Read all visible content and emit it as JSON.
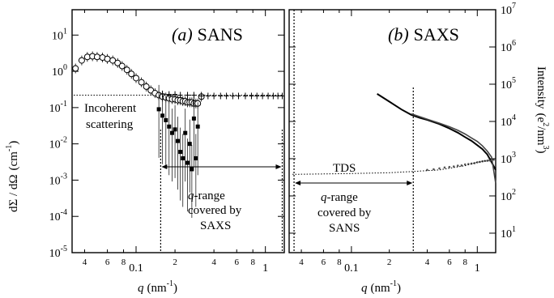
{
  "chart_data": [
    {
      "type": "scatter",
      "panel_label": "(a) SANS",
      "panel_letter": "a",
      "panel_name": "SANS",
      "xlabel": "q (nm⁻¹)",
      "xlabel_main": "q",
      "xlabel_unit": "(nm",
      "xlabel_exp": "-1",
      "xlabel_close": ")",
      "ylabel": "dΣ/dΩ (cm⁻¹)",
      "ylabel_main": "dΣ / dΩ",
      "ylabel_unit": "(cm",
      "ylabel_exp": "-1",
      "ylabel_close": ")",
      "x_scale": "log",
      "y_scale": "log",
      "xlim": [
        0.032,
        1.4
      ],
      "ylim": [
        1e-05,
        50
      ],
      "x_ticks_major": [
        {
          "v": 0.1,
          "label": "0.1"
        },
        {
          "v": 1,
          "label": "1"
        }
      ],
      "x_ticks_minor": [
        {
          "v": 0.04,
          "label": "4"
        },
        {
          "v": 0.06,
          "label": "6"
        },
        {
          "v": 0.08,
          "label": "8"
        },
        {
          "v": 0.2,
          "label": "2"
        },
        {
          "v": 0.4,
          "label": "4"
        },
        {
          "v": 0.6,
          "label": "6"
        },
        {
          "v": 0.8,
          "label": "8"
        }
      ],
      "y_ticks": [
        {
          "v": 10,
          "b": "10",
          "e": "1"
        },
        {
          "v": 1,
          "b": "10",
          "e": "0"
        },
        {
          "v": 0.1,
          "b": "10",
          "e": "-1"
        },
        {
          "v": 0.01,
          "b": "10",
          "e": "-2"
        },
        {
          "v": 0.001,
          "b": "10",
          "e": "-3"
        },
        {
          "v": 0.0001,
          "b": "10",
          "e": "-4"
        },
        {
          "v": 1e-05,
          "b": "10",
          "e": "-5"
        }
      ],
      "incoherent_level": 0.22,
      "saxs_range": [
        0.155,
        1.35
      ],
      "annotations": {
        "incoherent_1": "Incoherent",
        "incoherent_2": "scattering",
        "qrange_1_var": "q",
        "qrange_1_rest": "-range",
        "qrange_2": "covered by",
        "qrange_3": "SAXS"
      },
      "series": [
        {
          "marker": "open-circle",
          "x": [
            0.034,
            0.038,
            0.042,
            0.046,
            0.05,
            0.055,
            0.06,
            0.066,
            0.072,
            0.078,
            0.085,
            0.092,
            0.1,
            0.11,
            0.12,
            0.13,
            0.14,
            0.15,
            0.16,
            0.17,
            0.18,
            0.19,
            0.2,
            0.21,
            0.22,
            0.23,
            0.24,
            0.25,
            0.26,
            0.27,
            0.28,
            0.29,
            0.3,
            0.32
          ],
          "y": [
            1.2,
            2.0,
            2.5,
            2.6,
            2.5,
            2.4,
            2.2,
            2.0,
            1.7,
            1.4,
            1.1,
            0.85,
            0.65,
            0.5,
            0.38,
            0.3,
            0.25,
            0.22,
            0.2,
            0.19,
            0.18,
            0.17,
            0.17,
            0.16,
            0.16,
            0.15,
            0.15,
            0.14,
            0.14,
            0.14,
            0.13,
            0.13,
            0.13,
            0.2
          ]
        },
        {
          "marker": "plus",
          "x": [
            0.16,
            0.18,
            0.2,
            0.22,
            0.25,
            0.28,
            0.32,
            0.36,
            0.4,
            0.45,
            0.5,
            0.56,
            0.62,
            0.7,
            0.78,
            0.86,
            0.95,
            1.05,
            1.15,
            1.25,
            1.35
          ],
          "y": [
            0.24,
            0.23,
            0.23,
            0.22,
            0.22,
            0.22,
            0.21,
            0.21,
            0.21,
            0.21,
            0.21,
            0.21,
            0.21,
            0.21,
            0.21,
            0.21,
            0.21,
            0.21,
            0.21,
            0.21,
            0.21
          ]
        },
        {
          "marker": "filled-square",
          "x": [
            0.15,
            0.16,
            0.17,
            0.18,
            0.19,
            0.2,
            0.21,
            0.22,
            0.23,
            0.24,
            0.25,
            0.26,
            0.27,
            0.28,
            0.29,
            0.3
          ],
          "y": [
            0.09,
            0.06,
            0.045,
            0.03,
            0.02,
            0.025,
            0.012,
            0.006,
            0.004,
            0.02,
            0.003,
            0.01,
            0.002,
            0.05,
            0.004,
            0.03
          ]
        }
      ]
    },
    {
      "type": "line",
      "panel_label": "(b) SAXS",
      "panel_letter": "b",
      "panel_name": "SAXS",
      "xlabel": "q (nm⁻¹)",
      "xlabel_main": "q",
      "xlabel_unit": "(nm",
      "xlabel_exp": "-1",
      "xlabel_close": ")",
      "ylabel": "Intensity (e²/nm³)",
      "ylabel_main": "Intensity",
      "ylabel_unit": "(e",
      "ylabel_exp2": "2",
      "ylabel_mid": "/nm",
      "ylabel_exp3": "3",
      "ylabel_close": ")",
      "x_scale": "log",
      "y_scale": "log",
      "xlim": [
        0.032,
        1.4
      ],
      "ylim": [
        3,
        10000000
      ],
      "x_ticks_major": [
        {
          "v": 0.1,
          "label": "0.1"
        },
        {
          "v": 1,
          "label": "1"
        }
      ],
      "x_ticks_minor": [
        {
          "v": 0.04,
          "label": "4"
        },
        {
          "v": 0.06,
          "label": "6"
        },
        {
          "v": 0.08,
          "label": "8"
        },
        {
          "v": 0.2,
          "label": "2"
        },
        {
          "v": 0.4,
          "label": "4"
        },
        {
          "v": 0.6,
          "label": "6"
        },
        {
          "v": 0.8,
          "label": "8"
        }
      ],
      "y_ticks": [
        {
          "v": 10000000,
          "b": "10",
          "e": "7"
        },
        {
          "v": 1000000,
          "b": "10",
          "e": "6"
        },
        {
          "v": 100000,
          "b": "10",
          "e": "5"
        },
        {
          "v": 10000,
          "b": "10",
          "e": "4"
        },
        {
          "v": 1000,
          "b": "10",
          "e": "3"
        },
        {
          "v": 100,
          "b": "10",
          "e": "2"
        },
        {
          "v": 10,
          "b": "10",
          "e": "1"
        }
      ],
      "sans_range": [
        0.035,
        0.31
      ],
      "annotations": {
        "tds": "TDS",
        "qrange_1_var": "q",
        "qrange_1_rest": "-range",
        "qrange_2": "covered by",
        "qrange_3": "SANS"
      },
      "series": [
        {
          "marker": "line",
          "x": [
            0.16,
            0.2,
            0.25,
            0.3,
            0.35,
            0.4,
            0.5,
            0.6,
            0.7,
            0.8,
            0.9,
            1.0,
            1.1,
            1.2,
            1.3,
            1.4
          ],
          "y": [
            55000,
            34000,
            21000,
            15000,
            12500,
            11000,
            8500,
            6500,
            5000,
            3800,
            3000,
            2300,
            1800,
            1300,
            800,
            500
          ]
        },
        {
          "marker": "line",
          "x": [
            0.3,
            0.4,
            0.5,
            0.6,
            0.7,
            0.8,
            0.9,
            1.0,
            1.1,
            1.2,
            1.3,
            1.4
          ],
          "y": [
            16000,
            11500,
            9000,
            7200,
            5800,
            4600,
            3600,
            2900,
            2200,
            1600,
            1100,
            220
          ]
        },
        {
          "marker": "dots",
          "x": [
            0.4,
            0.45,
            0.5,
            0.55,
            0.6,
            0.65,
            0.7,
            0.75,
            0.8,
            0.85,
            0.9,
            0.95,
            1.0,
            1.05,
            1.1,
            1.15,
            1.2,
            1.25,
            1.3,
            1.35
          ],
          "y": [
            500,
            520,
            550,
            580,
            600,
            620,
            650,
            660,
            700,
            720,
            740,
            760,
            800,
            820,
            850,
            870,
            880,
            900,
            920,
            940
          ]
        },
        {
          "marker": "dotted-line",
          "x": [
            0.034,
            0.06,
            0.1,
            0.2,
            0.3,
            0.5,
            0.8,
            1.0,
            1.4
          ],
          "y": [
            380,
            390,
            400,
            420,
            450,
            500,
            650,
            800,
            1000
          ]
        }
      ]
    }
  ]
}
